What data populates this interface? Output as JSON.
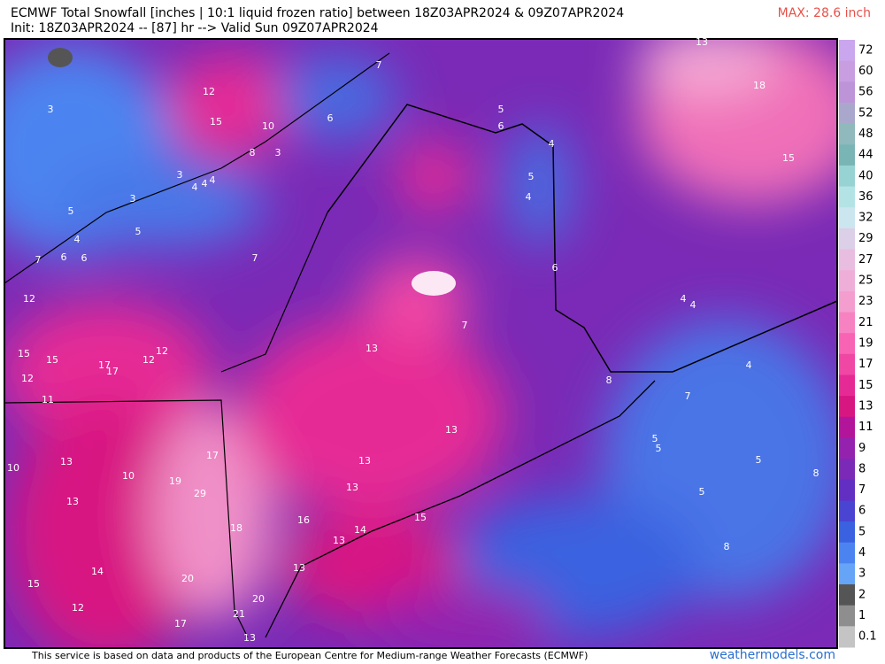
{
  "header": {
    "title_line1": "ECMWF Total Snowfall [inches | 10:1 liquid frozen ratio] between 18Z03APR2024 & 09Z07APR2024",
    "title_line2": "Init: 18Z03APR2024 -- [87] hr --> Valid Sun 09Z07APR2024",
    "max_label": "MAX: 28.6 inch"
  },
  "colorbar": {
    "ticks": [
      72,
      60,
      56,
      52,
      48,
      44,
      40,
      36,
      32,
      29,
      27,
      25,
      23,
      21,
      19,
      17,
      15,
      13,
      11,
      9,
      8,
      7,
      6,
      5,
      4,
      3,
      2,
      1,
      0.1
    ],
    "colors": [
      "#caa6ee",
      "#c89ee0",
      "#bd94d8",
      "#a9a8cc",
      "#8fb9bc",
      "#7ab5b5",
      "#98d3d3",
      "#b4e3e6",
      "#cce6f0",
      "#dccfe8",
      "#e8bde0",
      "#efaed8",
      "#f49ed0",
      "#f782c2",
      "#f864b3",
      "#f046a4",
      "#e62a95",
      "#d81682",
      "#b3159a",
      "#9522ae",
      "#7a2ab6",
      "#622fc2",
      "#4a44d2",
      "#3a62e0",
      "#4b84f0",
      "#66a4f8",
      "#555555",
      "#8e8e8e",
      "#c4c4c4"
    ]
  },
  "map": {
    "snowfall_labels": [
      3,
      12,
      15,
      10,
      8,
      3,
      6,
      7,
      3,
      4,
      4,
      4,
      3,
      5,
      5,
      4,
      7,
      6,
      6,
      7,
      5,
      6,
      4,
      5,
      4,
      6,
      13,
      18,
      15,
      12,
      7,
      13,
      4,
      4,
      4,
      15,
      15,
      17,
      17,
      12,
      12,
      12,
      11,
      8,
      7,
      5,
      5,
      13,
      17,
      10,
      13,
      10,
      19,
      29,
      13,
      5,
      8,
      13,
      13,
      5,
      18,
      16,
      15,
      14,
      13,
      8,
      13,
      14,
      20,
      15,
      20,
      12,
      21,
      17,
      13
    ]
  },
  "footer": {
    "attribution": "This service is based on data and products of the European Centre for Medium-range Weather Forecasts (ECMWF)",
    "brand": "weathermodels.com"
  }
}
